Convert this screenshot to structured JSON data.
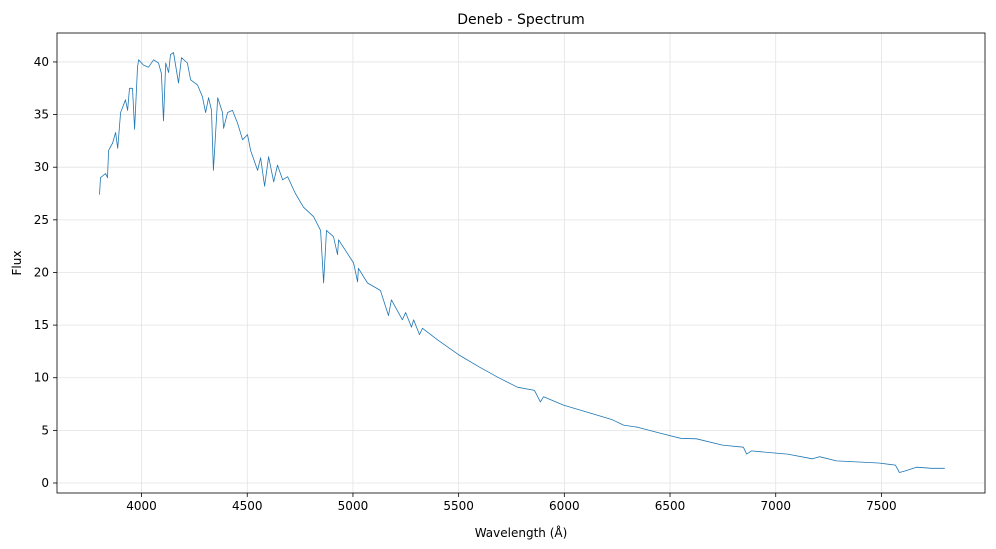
{
  "chart_data": {
    "type": "line",
    "title": "Deneb - Spectrum",
    "xlabel": "Wavelength (Å)",
    "ylabel": "Flux",
    "xlim": [
      3600,
      7990
    ],
    "ylim": [
      -0.95,
      42.75
    ],
    "xticks": [
      4000,
      4500,
      5000,
      5500,
      6000,
      6500,
      7000,
      7500
    ],
    "yticks": [
      0,
      5,
      10,
      15,
      20,
      25,
      30,
      35,
      40
    ],
    "grid": true,
    "series": [
      {
        "name": "Deneb",
        "color": "#1f77b4",
        "x": [
          3801,
          3806,
          3830,
          3839,
          3844,
          3863,
          3877,
          3887,
          3901,
          3924,
          3934,
          3943,
          3957,
          3967,
          3981,
          3986,
          4009,
          4033,
          4057,
          4080,
          4094,
          4104,
          4114,
          4128,
          4137,
          4151,
          4175,
          4189,
          4217,
          4232,
          4265,
          4288,
          4303,
          4317,
          4331,
          4340,
          4360,
          4383,
          4388,
          4407,
          4430,
          4454,
          4478,
          4501,
          4516,
          4549,
          4563,
          4582,
          4601,
          4625,
          4643,
          4667,
          4691,
          4728,
          4766,
          4814,
          4847,
          4861,
          4875,
          4908,
          4927,
          4932,
          5003,
          5022,
          5026,
          5069,
          5130,
          5168,
          5182,
          5234,
          5249,
          5277,
          5287,
          5315,
          5329,
          5400,
          5499,
          5599,
          5689,
          5778,
          5859,
          5887,
          5902,
          5996,
          6147,
          6228,
          6280,
          6346,
          6450,
          6550,
          6625,
          6748,
          6847,
          6862,
          6885,
          6994,
          7056,
          7174,
          7207,
          7287,
          7486,
          7566,
          7585,
          7614,
          7666,
          7737,
          7784,
          7800
        ],
        "y": [
          27.4,
          29.0,
          29.4,
          29.0,
          31.6,
          32.3,
          33.3,
          31.8,
          35.2,
          36.4,
          35.4,
          37.5,
          37.5,
          33.6,
          39.5,
          40.2,
          39.7,
          39.5,
          40.2,
          39.9,
          38.9,
          34.4,
          39.9,
          39.0,
          40.7,
          40.9,
          38.0,
          40.4,
          39.9,
          38.3,
          37.8,
          36.7,
          35.2,
          36.6,
          35.4,
          29.7,
          36.6,
          35.2,
          33.7,
          35.2,
          35.4,
          34.2,
          32.6,
          33.1,
          31.6,
          29.7,
          30.9,
          28.2,
          31.0,
          28.6,
          30.2,
          28.8,
          29.1,
          27.5,
          26.2,
          25.3,
          24.0,
          19.0,
          24.0,
          23.4,
          21.7,
          23.1,
          20.9,
          19.1,
          20.4,
          19.0,
          18.3,
          15.9,
          17.4,
          15.5,
          16.2,
          14.8,
          15.5,
          14.1,
          14.7,
          13.6,
          12.2,
          11.0,
          10.0,
          9.1,
          8.8,
          7.7,
          8.2,
          7.4,
          6.5,
          6.0,
          5.5,
          5.3,
          4.75,
          4.25,
          4.2,
          3.6,
          3.4,
          2.75,
          3.05,
          2.85,
          2.75,
          2.3,
          2.5,
          2.1,
          1.9,
          1.7,
          1.0,
          1.15,
          1.5,
          1.4,
          1.4,
          1.4
        ]
      }
    ]
  }
}
